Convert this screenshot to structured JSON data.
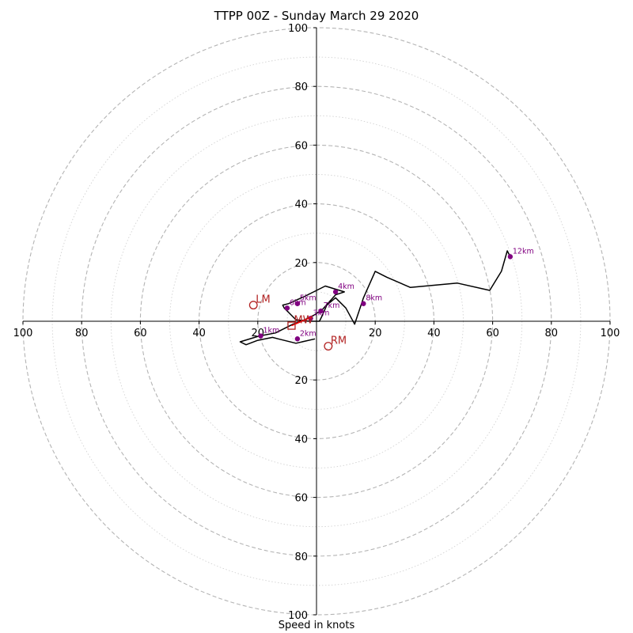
{
  "chart_data": {
    "type": "hodograph",
    "title": "TTPP 00Z - Sunday March 29 2020",
    "xlabel": "Speed in knots",
    "ring_ticks": [
      20,
      40,
      60,
      80,
      100
    ],
    "axis_range": [
      -100,
      100
    ],
    "ring_step_major": 20,
    "ring_step_minor": 10,
    "trace_color": "#000000",
    "point_color": "#800080",
    "motion_color": "#b22222",
    "wind_profile": [
      {
        "u": -0.5,
        "v": -6
      },
      {
        "u": -7,
        "v": -7.5
      },
      {
        "u": -13,
        "v": -6
      },
      {
        "u": -15,
        "v": -5.5
      },
      {
        "u": -20,
        "v": -6.5
      },
      {
        "u": -24,
        "v": -8
      },
      {
        "u": -26,
        "v": -7
      },
      {
        "u": -19.5,
        "v": -5
      },
      {
        "u": -14,
        "v": -4
      },
      {
        "u": -8,
        "v": -1
      },
      {
        "u": -4,
        "v": 0.5
      },
      {
        "u": -1,
        "v": 2
      },
      {
        "u": 2,
        "v": 4
      },
      {
        "u": 6.5,
        "v": 9
      },
      {
        "u": 9.5,
        "v": 10
      },
      {
        "u": 3,
        "v": 12
      },
      {
        "u": -4,
        "v": 8.5
      },
      {
        "u": -9.5,
        "v": 6
      },
      {
        "u": -11.5,
        "v": 5.5
      },
      {
        "u": -11,
        "v": 4.5
      },
      {
        "u": -9.5,
        "v": 3
      },
      {
        "u": -7,
        "v": 0.5
      },
      {
        "u": -2.5,
        "v": 0
      },
      {
        "u": 1,
        "v": 0
      },
      {
        "u": 2,
        "v": 2
      },
      {
        "u": 3.5,
        "v": 5.5
      },
      {
        "u": 6.5,
        "v": 8
      },
      {
        "u": 10,
        "v": 4.5
      },
      {
        "u": 13,
        "v": -1
      },
      {
        "u": 16,
        "v": 8
      },
      {
        "u": 20,
        "v": 17
      },
      {
        "u": 24,
        "v": 15
      },
      {
        "u": 32,
        "v": 11.5
      },
      {
        "u": 48,
        "v": 13
      },
      {
        "u": 59,
        "v": 10.5
      },
      {
        "u": 63,
        "v": 17
      },
      {
        "u": 65,
        "v": 24
      },
      {
        "u": 66,
        "v": 22
      }
    ],
    "height_points": [
      {
        "label": "1km",
        "u": -19,
        "v": -5
      },
      {
        "label": "2km",
        "u": -6.5,
        "v": -6
      },
      {
        "label": "3km",
        "u": -2,
        "v": 1
      },
      {
        "label": "4km",
        "u": 6.5,
        "v": 10
      },
      {
        "label": "5km",
        "u": -6.5,
        "v": 6
      },
      {
        "label": "6km",
        "u": -10,
        "v": 4.5
      },
      {
        "label": "7km",
        "u": 1.5,
        "v": 3.5
      },
      {
        "label": "8km",
        "u": 16,
        "v": 6
      },
      {
        "label": "12km",
        "u": 66,
        "v": 22
      }
    ],
    "storm_motions": [
      {
        "label": "LM",
        "u": -21.5,
        "v": 5.5,
        "marker": "circle"
      },
      {
        "label": "RM",
        "u": 4,
        "v": -8.5,
        "marker": "circle"
      },
      {
        "label": "MW",
        "u": -8.5,
        "v": -1.5,
        "marker": "square"
      }
    ],
    "shear_vector": {
      "from": {
        "u": -8.5,
        "v": -1.5
      },
      "to": {
        "u": -1.5,
        "v": 1.5
      }
    }
  }
}
